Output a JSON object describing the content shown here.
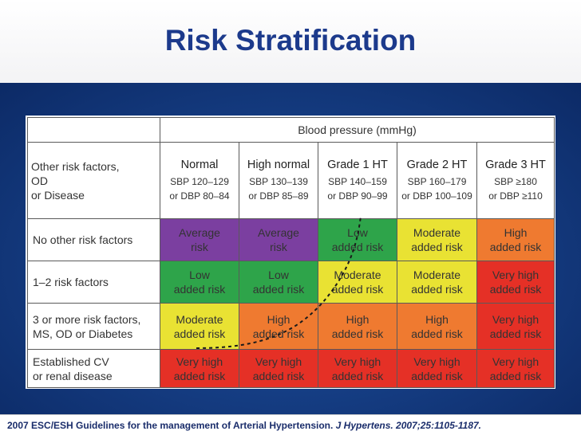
{
  "slide": {
    "title": "Risk Stratification"
  },
  "table": {
    "header": "Blood pressure (mmHg)",
    "corner": [
      "Other risk factors,",
      "OD",
      "or Disease"
    ],
    "columns": [
      {
        "name": "Normal",
        "range1": "SBP 120–129",
        "range2": "or DBP 80–84"
      },
      {
        "name": "High normal",
        "range1": "SBP 130–139",
        "range2": "or DBP 85–89"
      },
      {
        "name": "Grade 1 HT",
        "range1": "SBP 140–159",
        "range2": "or DBP 90–99"
      },
      {
        "name": "Grade 2 HT",
        "range1": "SBP 160–179",
        "range2": "or DBP 100–109"
      },
      {
        "name": "Grade 3 HT",
        "range1": "SBP ≥180",
        "range2": "or DBP ≥110"
      }
    ],
    "rows": [
      {
        "label": [
          "No other risk factors"
        ],
        "cells": [
          {
            "l1": "Average",
            "l2": "risk",
            "level": "avg"
          },
          {
            "l1": "Average",
            "l2": "risk",
            "level": "avg"
          },
          {
            "l1": "Low",
            "l2": "added risk",
            "level": "low"
          },
          {
            "l1": "Moderate",
            "l2": "added risk",
            "level": "mod"
          },
          {
            "l1": "High",
            "l2": "added risk",
            "level": "high"
          }
        ]
      },
      {
        "label": [
          "1–2 risk factors"
        ],
        "cells": [
          {
            "l1": "Low",
            "l2": "added risk",
            "level": "low"
          },
          {
            "l1": "Low",
            "l2": "added risk",
            "level": "low"
          },
          {
            "l1": "Moderate",
            "l2": "added risk",
            "level": "mod"
          },
          {
            "l1": "Moderate",
            "l2": "added risk",
            "level": "mod"
          },
          {
            "l1": "Very high",
            "l2": "added risk",
            "level": "vhigh"
          }
        ]
      },
      {
        "label": [
          "3 or more risk factors,",
          "MS, OD or Diabetes"
        ],
        "cells": [
          {
            "l1": "Moderate",
            "l2": "added risk",
            "level": "mod"
          },
          {
            "l1": "High",
            "l2": "added risk",
            "level": "high"
          },
          {
            "l1": "High",
            "l2": "added risk",
            "level": "high"
          },
          {
            "l1": "High",
            "l2": "added risk",
            "level": "high"
          },
          {
            "l1": "Very high",
            "l2": "added risk",
            "level": "vhigh"
          }
        ]
      },
      {
        "label": [
          "Established CV",
          "or renal disease"
        ],
        "cells": [
          {
            "l1": "Very high",
            "l2": "added risk",
            "level": "vhigh"
          },
          {
            "l1": "Very high",
            "l2": "added risk",
            "level": "vhigh"
          },
          {
            "l1": "Very high",
            "l2": "added risk",
            "level": "vhigh"
          },
          {
            "l1": "Very high",
            "l2": "added risk",
            "level": "vhigh"
          },
          {
            "l1": "Very high",
            "l2": "added risk",
            "level": "vhigh"
          }
        ]
      }
    ]
  },
  "citation": {
    "text": "2007 ESC/ESH Guidelines for the management of Arterial Hypertension. ",
    "journal": "J Hypertens. 2007;25:1105-1187."
  },
  "colors": {
    "title": "#1c3a8c",
    "avg": "#7b3fa0",
    "low": "#2ea44a",
    "mod": "#e9e233",
    "high": "#ef7a30",
    "vhigh": "#e53026"
  }
}
